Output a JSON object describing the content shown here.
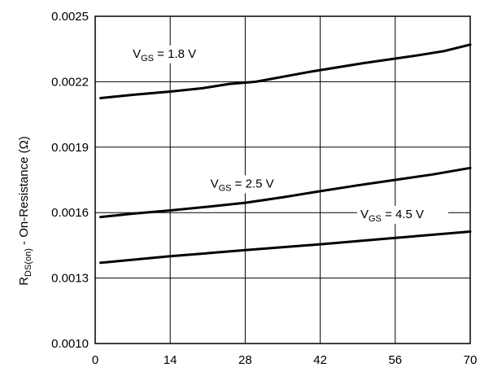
{
  "chart_data": {
    "type": "line",
    "xlabel": "",
    "ylabel": {
      "main": "R",
      "sub": "DS(on)",
      "rest": " - On-Resistance (Ω)"
    },
    "xlim": [
      0,
      70
    ],
    "ylim": [
      0.001,
      0.0025
    ],
    "xticks": [
      0,
      14,
      28,
      42,
      56,
      70
    ],
    "xtick_labels": [
      "0",
      "14",
      "28",
      "42",
      "56",
      "70"
    ],
    "yticks": [
      0.001,
      0.0013,
      0.0016,
      0.0019,
      0.0022,
      0.0025
    ],
    "ytick_labels": [
      "0.0010",
      "0.0013",
      "0.0016",
      "0.0019",
      "0.0022",
      "0.0025"
    ],
    "grid": true,
    "series": [
      {
        "label": {
          "main": "V",
          "sub": "GS",
          "rest": " = 1.8 V"
        },
        "label_pos": [
          7,
          0.00231
        ],
        "x": [
          1,
          7,
          14,
          20,
          25,
          30,
          40,
          50,
          60,
          65,
          70
        ],
        "y": [
          0.002125,
          0.00214,
          0.002155,
          0.00217,
          0.00219,
          0.0022,
          0.002245,
          0.002285,
          0.00232,
          0.00234,
          0.00237
        ]
      },
      {
        "label": {
          "main": "V",
          "sub": "GS",
          "rest": " = 2.5 V"
        },
        "label_pos": [
          21.5,
          0.001715
        ],
        "x": [
          1,
          7,
          14,
          21,
          28,
          35,
          42,
          49,
          56,
          63,
          70
        ],
        "y": [
          0.00158,
          0.001595,
          0.00161,
          0.001627,
          0.001645,
          0.00167,
          0.001698,
          0.001725,
          0.00175,
          0.001775,
          0.001805
        ]
      },
      {
        "label": {
          "main": "V",
          "sub": "GS",
          "rest": " = 4.5 V"
        },
        "label_pos": [
          49.5,
          0.001575
        ],
        "x": [
          1,
          14,
          28,
          42,
          56,
          70
        ],
        "y": [
          0.00137,
          0.0014,
          0.001428,
          0.001455,
          0.001484,
          0.001513
        ]
      }
    ]
  }
}
